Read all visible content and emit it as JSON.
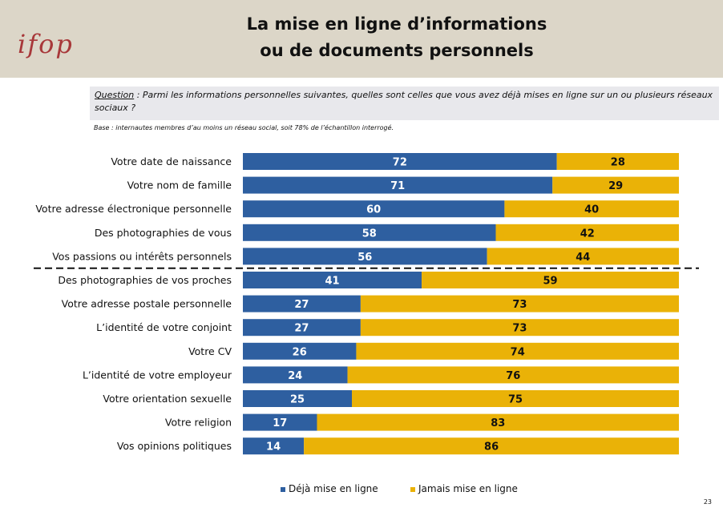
{
  "header": {
    "logo": "ifop",
    "title_line1": "La mise en ligne d’informations",
    "title_line2": "ou de documents personnels"
  },
  "question": {
    "label": "Question",
    "text": " : Parmi les informations personnelles suivantes, quelles sont celles que vous avez déjà mises en ligne sur un ou plusieurs réseaux sociaux ?"
  },
  "base": "Base : internautes membres d’au moins un réseau social, soit 78% de l’échantillon interrogé.",
  "page_number": "23",
  "colors": {
    "deja": "#2e5fa0",
    "jamais": "#eab207",
    "header_bg": "#dcd6c8",
    "logo": "#a8383a"
  },
  "chart_data": {
    "type": "bar",
    "orientation": "horizontal",
    "stacked": true,
    "categories": [
      "Votre date de naissance",
      "Votre nom de famille",
      "Votre adresse électronique personnelle",
      "Des photographies de vous",
      "Vos passions ou intérêts personnels",
      "Des photographies de vos proches",
      "Votre adresse postale personnelle",
      "L’identité de votre conjoint",
      "Votre CV",
      "L’identité de votre employeur",
      "Votre orientation sexuelle",
      "Votre religion",
      "Vos opinions politiques"
    ],
    "series": [
      {
        "name": "Déjà mise en ligne",
        "values": [
          72,
          71,
          60,
          58,
          56,
          41,
          27,
          27,
          26,
          24,
          25,
          17,
          14
        ]
      },
      {
        "name": "Jamais mise en ligne",
        "values": [
          28,
          29,
          40,
          42,
          44,
          59,
          73,
          73,
          74,
          76,
          75,
          83,
          86
        ]
      }
    ],
    "xlim": [
      0,
      100
    ],
    "legend": "bottom",
    "separator_after_index": 4
  }
}
